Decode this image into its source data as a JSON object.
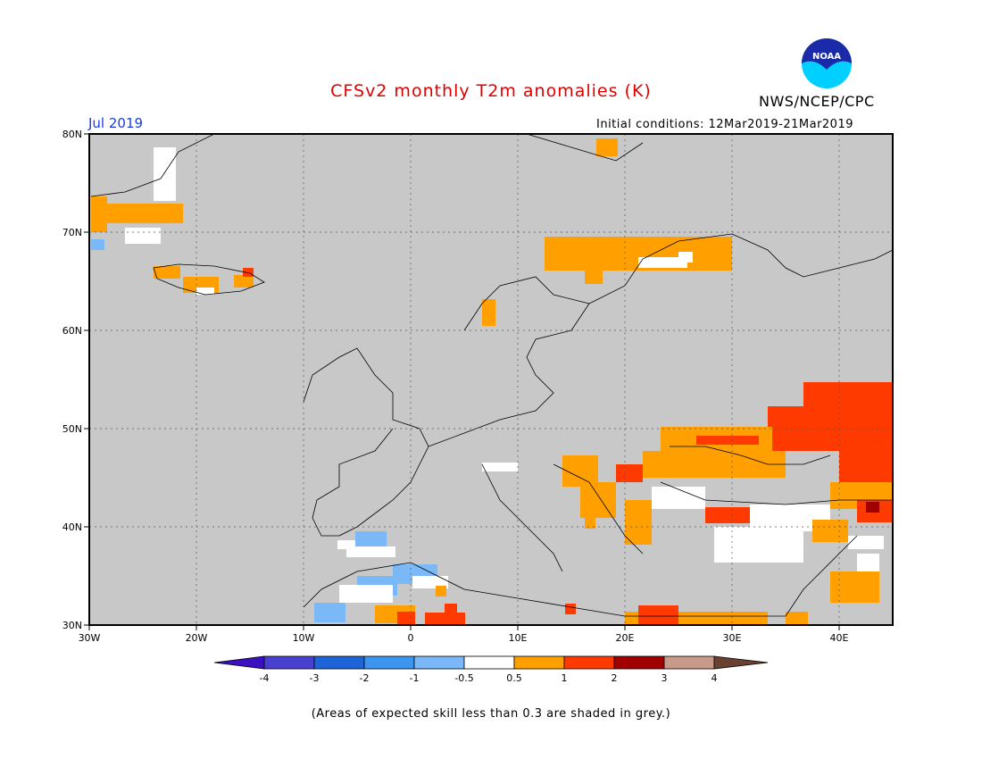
{
  "title": "CFSv2 monthly T2m anomalies (K)",
  "agency": "NWS/NCEP/CPC",
  "logo_text": "NOAA",
  "month": "Jul 2019",
  "initial_conditions": "Initial conditions: 12Mar2019-21Mar2019",
  "footnote": "(Areas of expected skill less than 0.3 are shaded in grey.)",
  "colors": {
    "grey": "#c8c8c8",
    "white": "#ffffff",
    "orange": "#ffa000",
    "red": "#ff3a00",
    "darkred": "#a00000",
    "lightblue": "#7ab8f8"
  },
  "axes": {
    "lon_ticks": [
      "30W",
      "20W",
      "10W",
      "0",
      "10E",
      "20E",
      "30E",
      "40E"
    ],
    "lat_ticks": [
      "80N",
      "70N",
      "60N",
      "50N",
      "40N",
      "30N"
    ]
  },
  "colorbar": {
    "labels": [
      "-4",
      "-3",
      "-2",
      "-1",
      "-0.5",
      "0.5",
      "1",
      "2",
      "3",
      "4"
    ],
    "colors": [
      "#3a10c0",
      "#4a40d0",
      "#1e64d8",
      "#3c96f0",
      "#7ab8f8",
      "#ffffff",
      "#ffa000",
      "#ff3a00",
      "#a00000",
      "#c89a8a",
      "#6a4030"
    ]
  }
}
